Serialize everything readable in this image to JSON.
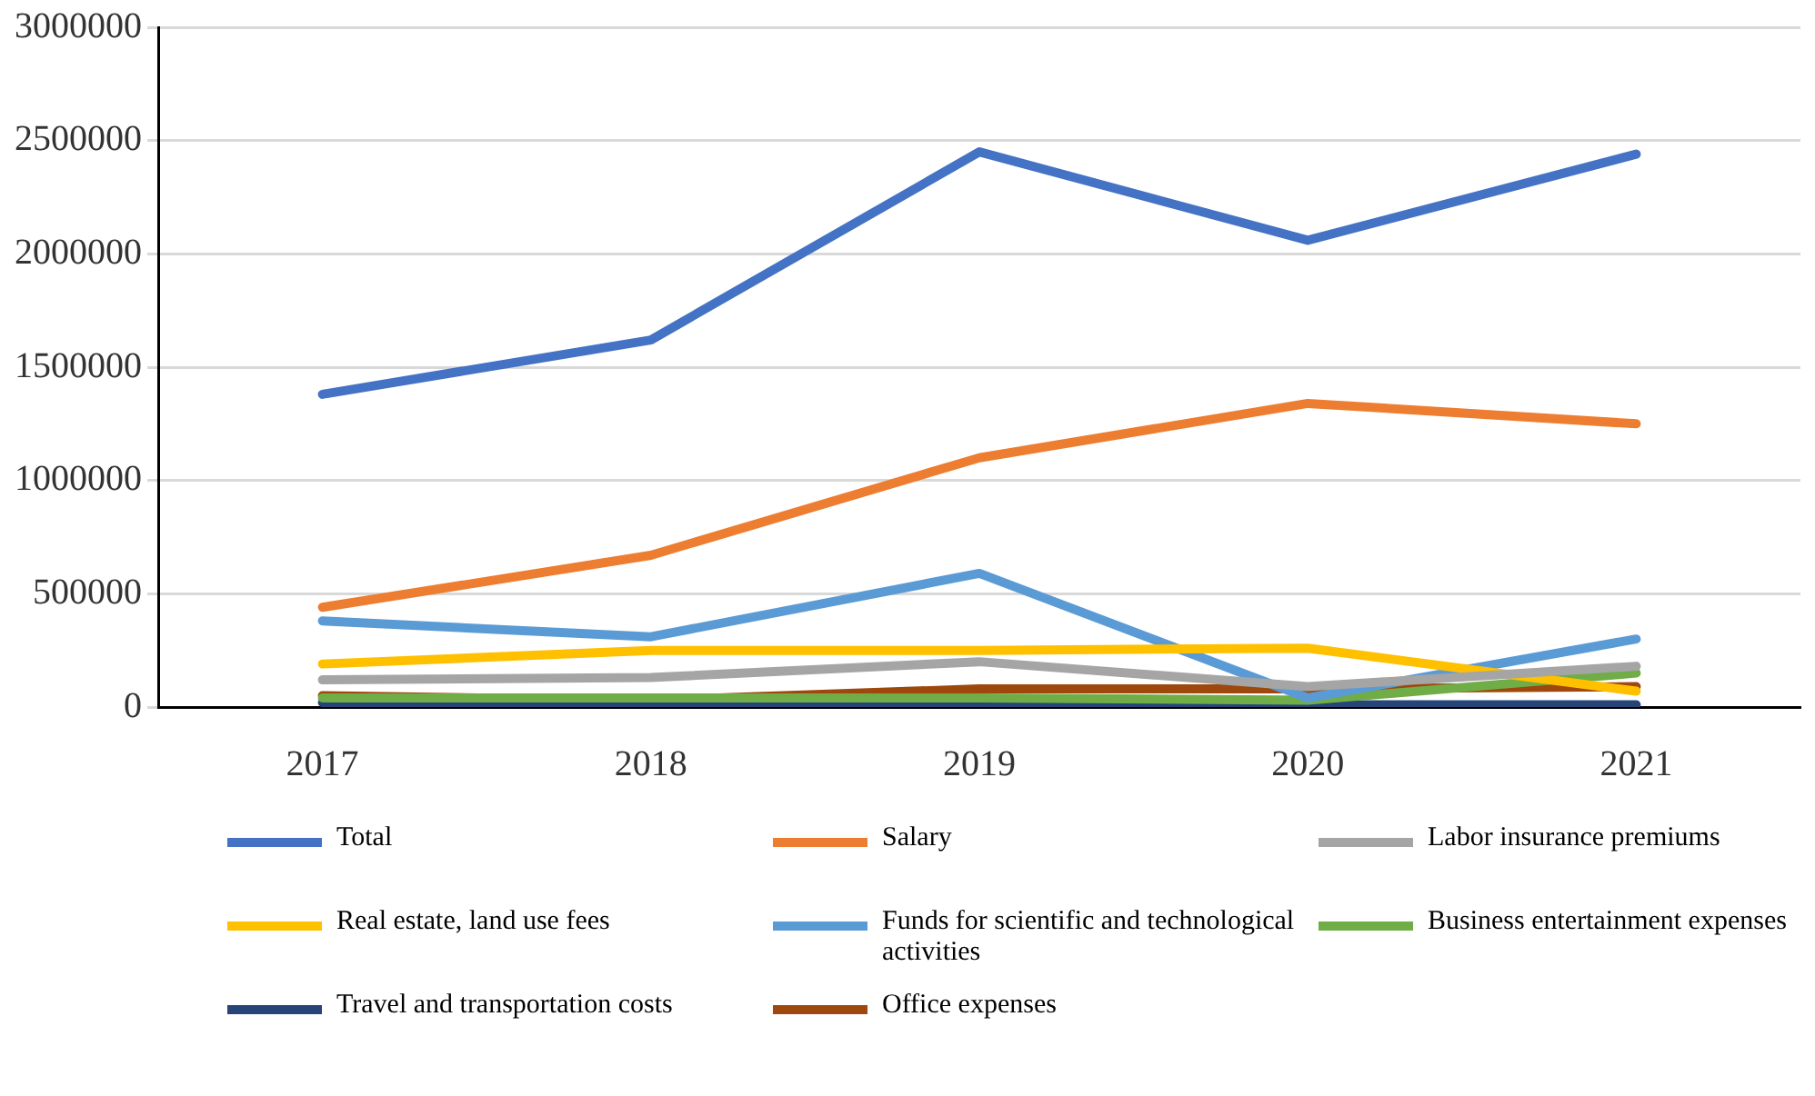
{
  "chart_data": {
    "type": "line",
    "categories": [
      "2017",
      "2018",
      "2019",
      "2020",
      "2021"
    ],
    "series": [
      {
        "name": "Total",
        "color": "#4472c4",
        "values": [
          1380000,
          1620000,
          2450000,
          2060000,
          2440000
        ]
      },
      {
        "name": "Salary",
        "color": "#ed7d31",
        "values": [
          440000,
          670000,
          1100000,
          1340000,
          1250000
        ]
      },
      {
        "name": "Labor insurance premiums",
        "color": "#a5a5a5",
        "values": [
          120000,
          130000,
          200000,
          90000,
          180000
        ]
      },
      {
        "name": "Real estate, land use fees",
        "color": "#ffc000",
        "values": [
          190000,
          250000,
          250000,
          260000,
          70000
        ]
      },
      {
        "name": "Funds for scientific and technological activities",
        "color": "#5b9bd5",
        "values": [
          380000,
          310000,
          590000,
          40000,
          300000
        ]
      },
      {
        "name": "Business entertainment expenses",
        "color": "#70ad47",
        "values": [
          40000,
          40000,
          40000,
          30000,
          150000
        ]
      },
      {
        "name": "Travel and transportation costs",
        "color": "#264478",
        "values": [
          20000,
          10000,
          20000,
          10000,
          10000
        ]
      },
      {
        "name": "Office expenses",
        "color": "#9e480e",
        "values": [
          50000,
          30000,
          80000,
          80000,
          90000
        ]
      }
    ],
    "ylim": [
      0,
      3000000
    ],
    "yticks": [
      0,
      500000,
      1000000,
      1500000,
      2000000,
      2500000,
      3000000
    ],
    "grid": "y",
    "legend": "bottom",
    "marker": "none",
    "line_style": "solid"
  }
}
